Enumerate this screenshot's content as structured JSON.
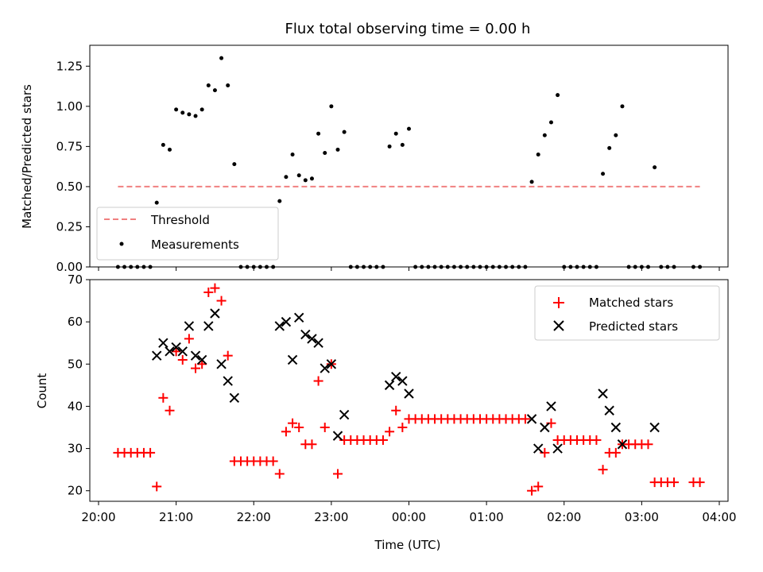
{
  "chart_data": [
    {
      "type": "scatter",
      "title": "Flux total observing time = 0.00 h",
      "xlabel": "",
      "ylabel": "Matched/Predicted stars",
      "xlim": [
        "20:00",
        "04:00"
      ],
      "ylim": [
        0,
        1.38
      ],
      "yticks": [
        0.0,
        0.25,
        0.5,
        0.75,
        1.0,
        1.25
      ],
      "ytick_labels": [
        "0.00",
        "0.25",
        "0.50",
        "0.75",
        "1.00",
        "1.25"
      ],
      "legend_position": "lower-left",
      "threshold": {
        "name": "Threshold",
        "value": 0.5,
        "x_start": "20:15",
        "x_end": "03:45",
        "color": "#f08080",
        "style": "dashed"
      },
      "series": [
        {
          "name": "Measurements",
          "color": "#000000",
          "marker": "dot",
          "points": [
            [
              "20:15",
              0
            ],
            [
              "20:20",
              0
            ],
            [
              "20:25",
              0
            ],
            [
              "20:30",
              0
            ],
            [
              "20:35",
              0
            ],
            [
              "20:40",
              0
            ],
            [
              "20:45",
              0.4
            ],
            [
              "20:50",
              0.76
            ],
            [
              "20:55",
              0.73
            ],
            [
              "21:00",
              0.98
            ],
            [
              "21:05",
              0.96
            ],
            [
              "21:10",
              0.95
            ],
            [
              "21:15",
              0.94
            ],
            [
              "21:20",
              0.98
            ],
            [
              "21:25",
              1.13
            ],
            [
              "21:30",
              1.1
            ],
            [
              "21:35",
              1.3
            ],
            [
              "21:40",
              1.13
            ],
            [
              "21:45",
              0.64
            ],
            [
              "21:50",
              0
            ],
            [
              "21:55",
              0
            ],
            [
              "22:00",
              0
            ],
            [
              "22:05",
              0
            ],
            [
              "22:10",
              0
            ],
            [
              "22:15",
              0
            ],
            [
              "22:20",
              0.41
            ],
            [
              "22:25",
              0.56
            ],
            [
              "22:30",
              0.7
            ],
            [
              "22:35",
              0.57
            ],
            [
              "22:40",
              0.54
            ],
            [
              "22:45",
              0.55
            ],
            [
              "22:50",
              0.83
            ],
            [
              "22:55",
              0.71
            ],
            [
              "23:00",
              1.0
            ],
            [
              "23:05",
              0.73
            ],
            [
              "23:10",
              0.84
            ],
            [
              "23:15",
              0
            ],
            [
              "23:20",
              0
            ],
            [
              "23:25",
              0
            ],
            [
              "23:30",
              0
            ],
            [
              "23:35",
              0
            ],
            [
              "23:40",
              0
            ],
            [
              "23:45",
              0.75
            ],
            [
              "23:50",
              0.83
            ],
            [
              "23:55",
              0.76
            ],
            [
              "00:00",
              0.86
            ],
            [
              "00:05",
              0
            ],
            [
              "00:10",
              0
            ],
            [
              "00:15",
              0
            ],
            [
              "00:20",
              0
            ],
            [
              "00:25",
              0
            ],
            [
              "00:30",
              0
            ],
            [
              "00:35",
              0
            ],
            [
              "00:40",
              0
            ],
            [
              "00:45",
              0
            ],
            [
              "00:50",
              0
            ],
            [
              "00:55",
              0
            ],
            [
              "01:00",
              0
            ],
            [
              "01:05",
              0
            ],
            [
              "01:10",
              0
            ],
            [
              "01:15",
              0
            ],
            [
              "01:20",
              0
            ],
            [
              "01:25",
              0
            ],
            [
              "01:30",
              0
            ],
            [
              "01:35",
              0.53
            ],
            [
              "01:40",
              0.7
            ],
            [
              "01:45",
              0.82
            ],
            [
              "01:50",
              0.9
            ],
            [
              "01:55",
              1.07
            ],
            [
              "02:00",
              0
            ],
            [
              "02:05",
              0
            ],
            [
              "02:10",
              0
            ],
            [
              "02:15",
              0
            ],
            [
              "02:20",
              0
            ],
            [
              "02:25",
              0
            ],
            [
              "02:30",
              0.58
            ],
            [
              "02:35",
              0.74
            ],
            [
              "02:40",
              0.82
            ],
            [
              "02:45",
              1.0
            ],
            [
              "02:50",
              0
            ],
            [
              "02:55",
              0
            ],
            [
              "03:00",
              0
            ],
            [
              "03:05",
              0
            ],
            [
              "03:10",
              0.62
            ],
            [
              "03:15",
              0
            ],
            [
              "03:20",
              0
            ],
            [
              "03:25",
              0
            ],
            [
              "03:40",
              0
            ],
            [
              "03:45",
              0
            ]
          ]
        }
      ]
    },
    {
      "type": "scatter",
      "title": "",
      "xlabel": "Time (UTC)",
      "ylabel": "Count",
      "xlim": [
        "20:00",
        "04:00"
      ],
      "ylim": [
        17.5,
        70
      ],
      "xticks": [
        "20:00",
        "21:00",
        "22:00",
        "23:00",
        "00:00",
        "01:00",
        "02:00",
        "03:00",
        "04:00"
      ],
      "yticks": [
        20,
        30,
        40,
        50,
        60,
        70
      ],
      "legend_position": "upper-right",
      "series": [
        {
          "name": "Matched stars",
          "color": "#ff0000",
          "marker": "plus",
          "points": [
            [
              "20:15",
              29
            ],
            [
              "20:20",
              29
            ],
            [
              "20:25",
              29
            ],
            [
              "20:30",
              29
            ],
            [
              "20:35",
              29
            ],
            [
              "20:40",
              29
            ],
            [
              "20:45",
              21
            ],
            [
              "20:50",
              42
            ],
            [
              "20:55",
              39
            ],
            [
              "21:00",
              53
            ],
            [
              "21:05",
              51
            ],
            [
              "21:10",
              56
            ],
            [
              "21:15",
              49
            ],
            [
              "21:20",
              50
            ],
            [
              "21:25",
              67
            ],
            [
              "21:30",
              68
            ],
            [
              "21:35",
              65
            ],
            [
              "21:40",
              52
            ],
            [
              "21:45",
              27
            ],
            [
              "21:50",
              27
            ],
            [
              "21:55",
              27
            ],
            [
              "22:00",
              27
            ],
            [
              "22:05",
              27
            ],
            [
              "22:10",
              27
            ],
            [
              "22:15",
              27
            ],
            [
              "22:20",
              24
            ],
            [
              "22:25",
              34
            ],
            [
              "22:30",
              36
            ],
            [
              "22:35",
              35
            ],
            [
              "22:40",
              31
            ],
            [
              "22:45",
              31
            ],
            [
              "22:50",
              46
            ],
            [
              "22:55",
              35
            ],
            [
              "23:00",
              50
            ],
            [
              "23:05",
              24
            ],
            [
              "23:10",
              32
            ],
            [
              "23:15",
              32
            ],
            [
              "23:20",
              32
            ],
            [
              "23:25",
              32
            ],
            [
              "23:30",
              32
            ],
            [
              "23:35",
              32
            ],
            [
              "23:40",
              32
            ],
            [
              "23:45",
              34
            ],
            [
              "23:50",
              39
            ],
            [
              "23:55",
              35
            ],
            [
              "00:00",
              37
            ],
            [
              "00:05",
              37
            ],
            [
              "00:10",
              37
            ],
            [
              "00:15",
              37
            ],
            [
              "00:20",
              37
            ],
            [
              "00:25",
              37
            ],
            [
              "00:30",
              37
            ],
            [
              "00:35",
              37
            ],
            [
              "00:40",
              37
            ],
            [
              "00:45",
              37
            ],
            [
              "00:50",
              37
            ],
            [
              "00:55",
              37
            ],
            [
              "01:00",
              37
            ],
            [
              "01:05",
              37
            ],
            [
              "01:10",
              37
            ],
            [
              "01:15",
              37
            ],
            [
              "01:20",
              37
            ],
            [
              "01:25",
              37
            ],
            [
              "01:30",
              37
            ],
            [
              "01:35",
              20
            ],
            [
              "01:40",
              21
            ],
            [
              "01:45",
              29
            ],
            [
              "01:50",
              36
            ],
            [
              "01:55",
              32
            ],
            [
              "02:00",
              32
            ],
            [
              "02:05",
              32
            ],
            [
              "02:10",
              32
            ],
            [
              "02:15",
              32
            ],
            [
              "02:20",
              32
            ],
            [
              "02:25",
              32
            ],
            [
              "02:30",
              25
            ],
            [
              "02:35",
              29
            ],
            [
              "02:40",
              29
            ],
            [
              "02:45",
              31
            ],
            [
              "02:50",
              31
            ],
            [
              "02:55",
              31
            ],
            [
              "03:00",
              31
            ],
            [
              "03:05",
              31
            ],
            [
              "03:10",
              22
            ],
            [
              "03:15",
              22
            ],
            [
              "03:20",
              22
            ],
            [
              "03:25",
              22
            ],
            [
              "03:40",
              22
            ],
            [
              "03:45",
              22
            ]
          ]
        },
        {
          "name": "Predicted stars",
          "color": "#000000",
          "marker": "x",
          "points": [
            [
              "20:45",
              52
            ],
            [
              "20:50",
              55
            ],
            [
              "20:55",
              53
            ],
            [
              "21:00",
              54
            ],
            [
              "21:05",
              53
            ],
            [
              "21:10",
              59
            ],
            [
              "21:15",
              52
            ],
            [
              "21:20",
              51
            ],
            [
              "21:25",
              59
            ],
            [
              "21:30",
              62
            ],
            [
              "21:35",
              50
            ],
            [
              "21:40",
              46
            ],
            [
              "21:45",
              42
            ],
            [
              "22:20",
              59
            ],
            [
              "22:25",
              60
            ],
            [
              "22:30",
              51
            ],
            [
              "22:35",
              61
            ],
            [
              "22:40",
              57
            ],
            [
              "22:45",
              56
            ],
            [
              "22:50",
              55
            ],
            [
              "22:55",
              49
            ],
            [
              "23:00",
              50
            ],
            [
              "23:05",
              33
            ],
            [
              "23:10",
              38
            ],
            [
              "23:45",
              45
            ],
            [
              "23:50",
              47
            ],
            [
              "23:55",
              46
            ],
            [
              "00:00",
              43
            ],
            [
              "01:35",
              37
            ],
            [
              "01:40",
              30
            ],
            [
              "01:45",
              35
            ],
            [
              "01:50",
              40
            ],
            [
              "01:55",
              30
            ],
            [
              "02:30",
              43
            ],
            [
              "02:35",
              39
            ],
            [
              "02:40",
              35
            ],
            [
              "02:45",
              31
            ],
            [
              "03:10",
              35
            ]
          ]
        }
      ]
    }
  ]
}
